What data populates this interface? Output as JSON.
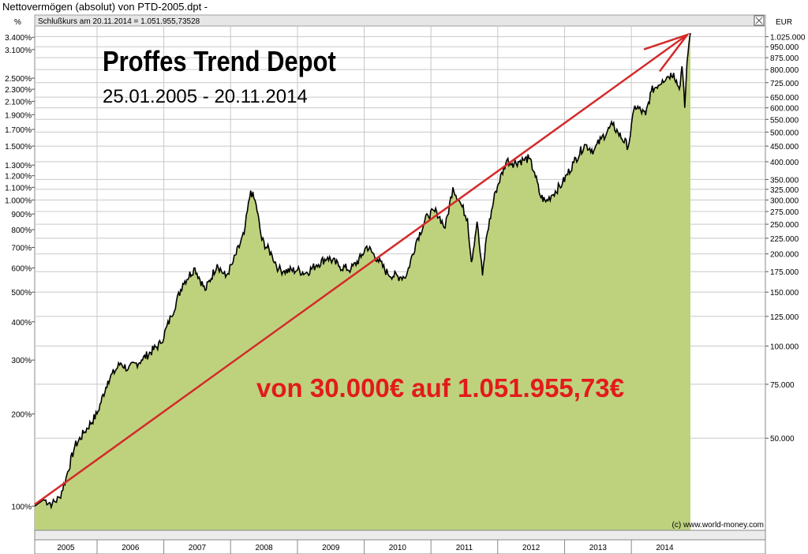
{
  "window": {
    "title": "Nettovermögen (absolut) von PTD-2005.dpt -"
  },
  "chart_header": {
    "close_symbol": "close-box-icon",
    "info": "Schlußkurs am 20.11.2014 = 1.051.955,73528"
  },
  "annotations": {
    "title": "Proffes Trend Depot",
    "date_range": "25.01.2005 - 20.11.2014",
    "result": "von 30.000€ auf 1.051.955,73€",
    "copyright": "(c) www.world-money.com"
  },
  "colors": {
    "area_fill": "#bed27e",
    "line": "#000000",
    "arrow": "#d42a2a",
    "grid": "#c8c8c8",
    "result_text": "#e21b1b"
  },
  "chart_data": {
    "type": "area",
    "title": "Proffes Trend Depot",
    "subtitle": "25.01.2005 - 20.11.2014",
    "y_scale": "log",
    "ylabel_left": "%",
    "ylabel_right": "EUR",
    "ylim_eur": [
      25000,
      1110000
    ],
    "x_range": [
      "2005-01-25",
      "2014-11-20"
    ],
    "x_tick_labels": [
      "2005",
      "2006",
      "2007",
      "2008",
      "2009",
      "2010",
      "2011",
      "2012",
      "2013",
      "2014"
    ],
    "left_ticks": [
      "100%",
      "200%",
      "300%",
      "400%",
      "500%",
      "600%",
      "700%",
      "800%",
      "900%",
      "1.000%",
      "1.100%",
      "1.200%",
      "1.300%",
      "1.500%",
      "1.700%",
      "1.900%",
      "2.100%",
      "2.300%",
      "2.500%",
      "3.100%",
      "3.400%"
    ],
    "right_ticks": [
      "50.000",
      "75.000",
      "100.000",
      "125.000",
      "150.000",
      "175.000",
      "200.000",
      "225.000",
      "250.000",
      "275.000",
      "300.000",
      "325.000",
      "350.000",
      "400.000",
      "450.000",
      "500.000",
      "550.000",
      "600.000",
      "650.000",
      "725.000",
      "800.000",
      "875.000",
      "950.000",
      "1.025.000"
    ],
    "series": [
      {
        "values_eur": [
          [
            "2005-01-25",
            30000
          ],
          [
            "2005-03-15",
            31500
          ],
          [
            "2005-05-01",
            30500
          ],
          [
            "2005-06-10",
            32000
          ],
          [
            "2005-07-15",
            37000
          ],
          [
            "2005-09-01",
            47000
          ],
          [
            "2005-10-20",
            52000
          ],
          [
            "2006-01-01",
            60000
          ],
          [
            "2006-03-01",
            77000
          ],
          [
            "2006-05-10",
            88000
          ],
          [
            "2006-06-20",
            84000
          ],
          [
            "2006-09-01",
            90000
          ],
          [
            "2006-12-15",
            102000
          ],
          [
            "2007-02-10",
            125000
          ],
          [
            "2007-04-15",
            160000
          ],
          [
            "2007-06-20",
            180000
          ],
          [
            "2007-08-15",
            152000
          ],
          [
            "2007-10-20",
            185000
          ],
          [
            "2007-12-05",
            168000
          ],
          [
            "2008-01-10",
            185000
          ],
          [
            "2008-03-15",
            232000
          ],
          [
            "2008-04-20",
            322000
          ],
          [
            "2008-05-20",
            290000
          ],
          [
            "2008-06-20",
            222000
          ],
          [
            "2008-08-15",
            198000
          ],
          [
            "2008-09-20",
            178000
          ],
          [
            "2008-10-20",
            176000
          ],
          [
            "2009-01-01",
            177000
          ],
          [
            "2009-02-15",
            173000
          ],
          [
            "2009-04-15",
            184000
          ],
          [
            "2009-06-15",
            195000
          ],
          [
            "2009-08-20",
            182000
          ],
          [
            "2009-10-20",
            178000
          ],
          [
            "2009-12-15",
            195000
          ],
          [
            "2010-01-15",
            212000
          ],
          [
            "2010-03-15",
            192000
          ],
          [
            "2010-05-10",
            172000
          ],
          [
            "2010-07-15",
            168000
          ],
          [
            "2010-08-20",
            170000
          ],
          [
            "2010-10-15",
            222000
          ],
          [
            "2010-12-15",
            268000
          ],
          [
            "2011-02-01",
            275000
          ],
          [
            "2011-03-20",
            243000
          ],
          [
            "2011-05-01",
            330000
          ],
          [
            "2011-06-20",
            285000
          ],
          [
            "2011-07-20",
            260000
          ],
          [
            "2011-08-10",
            188000
          ],
          [
            "2011-09-10",
            255000
          ],
          [
            "2011-10-10",
            170000
          ],
          [
            "2011-11-01",
            228000
          ],
          [
            "2011-12-20",
            320000
          ],
          [
            "2012-02-20",
            405000
          ],
          [
            "2012-03-20",
            395000
          ],
          [
            "2012-05-20",
            405000
          ],
          [
            "2012-06-20",
            410000
          ],
          [
            "2012-07-20",
            370000
          ],
          [
            "2012-08-20",
            310000
          ],
          [
            "2012-09-20",
            296000
          ],
          [
            "2012-10-20",
            310000
          ],
          [
            "2012-12-20",
            340000
          ],
          [
            "2013-02-20",
            398000
          ],
          [
            "2013-04-20",
            455000
          ],
          [
            "2013-06-10",
            435000
          ],
          [
            "2013-07-20",
            475000
          ],
          [
            "2013-09-20",
            528000
          ],
          [
            "2013-10-20",
            498000
          ],
          [
            "2013-12-15",
            448000
          ],
          [
            "2014-01-20",
            610000
          ],
          [
            "2014-03-20",
            568000
          ],
          [
            "2014-04-20",
            680000
          ],
          [
            "2014-06-20",
            740000
          ],
          [
            "2014-07-20",
            760000
          ],
          [
            "2014-08-20",
            780000
          ],
          [
            "2014-09-20",
            690000
          ],
          [
            "2014-10-05",
            820000
          ],
          [
            "2014-10-20",
            600000
          ],
          [
            "2014-11-01",
            840000
          ],
          [
            "2014-11-12",
            970000
          ],
          [
            "2014-11-20",
            1051955.73528
          ]
        ]
      }
    ],
    "trend_arrow_eur": [
      [
        "2005-01-25",
        30000
      ],
      [
        "2014-11-20",
        1051955.73528
      ]
    ]
  }
}
